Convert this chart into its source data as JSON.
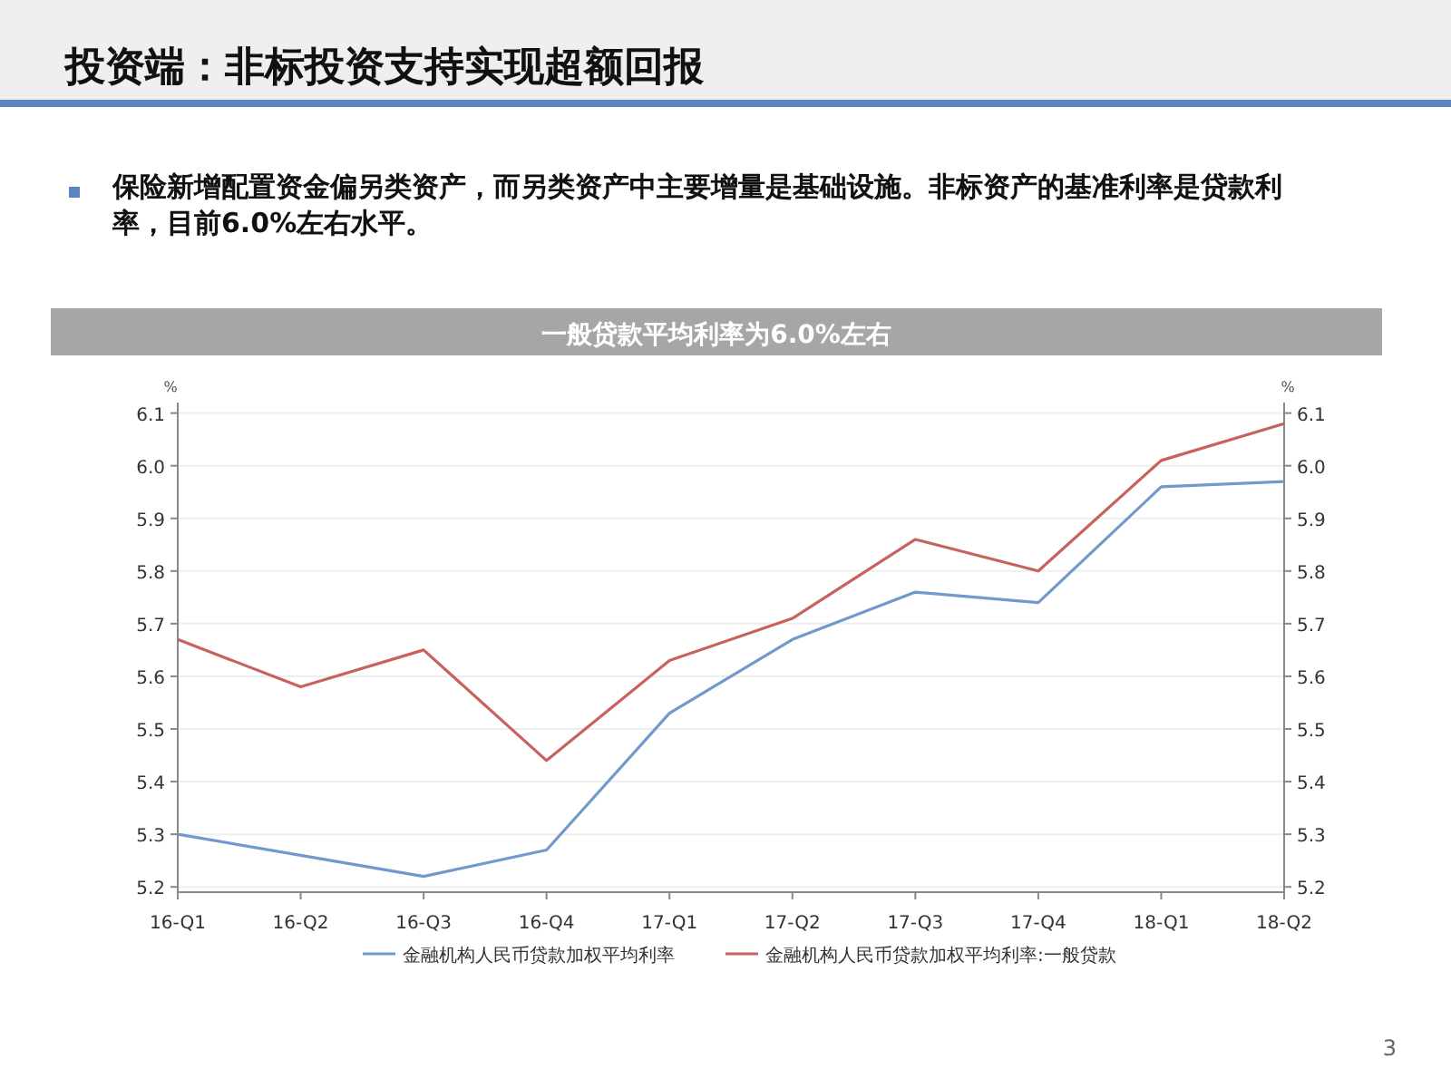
{
  "chart_data": {
    "type": "line",
    "title": "投资端：非标投资支持实现超额回报",
    "subtitle": "保险新增配置资金偏另类资产，而另类资产中主要增量是基础设施。非标资产的基准利率是贷款利率，目前6.0%左右水平。",
    "annotations": [
      "一般贷款平均利率为6.0%左右",
      "3"
    ],
    "ylabel": "%",
    "y2label": "%",
    "categories": [
      "16-Q1",
      "16-Q2",
      "16-Q3",
      "16-Q4",
      "17-Q1",
      "17-Q2",
      "17-Q3",
      "17-Q4",
      "18-Q1",
      "18-Q2"
    ],
    "series": [
      {
        "name": "金融机构人民币贷款加权平均利率",
        "color": "#6f9acb",
        "values": [
          5.3,
          5.26,
          5.22,
          5.27,
          5.53,
          5.67,
          5.76,
          5.74,
          5.96,
          5.97
        ]
      },
      {
        "name": "金融机构人民币贷款加权平均利率:一般贷款",
        "color": "#c8625f",
        "values": [
          5.67,
          5.58,
          5.65,
          5.44,
          5.63,
          5.71,
          5.86,
          5.8,
          6.01,
          6.08
        ]
      }
    ],
    "ylim": [
      5.19,
      6.12
    ],
    "yticks": [
      5.2,
      5.3,
      5.4,
      5.5,
      5.6,
      5.7,
      5.8,
      5.9,
      {
        "value": 6.0,
        "label": "6.0"
      },
      6.1
    ],
    "y2lim": [
      5.19,
      6.12
    ],
    "y2ticks": [
      5.2,
      5.3,
      5.4,
      5.5,
      5.6,
      5.7,
      5.8,
      5.9,
      {
        "value": 6.0,
        "label": "6.0"
      },
      6.1
    ],
    "grid": "y",
    "legend": "bottom",
    "marker": "none",
    "line_style": "solid"
  }
}
